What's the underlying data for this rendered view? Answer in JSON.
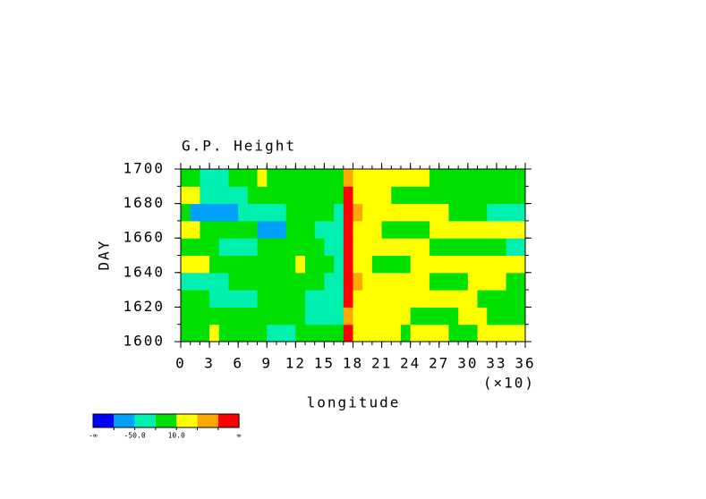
{
  "chart_data": {
    "type": "contour",
    "title": "G.P. Height",
    "xlabel": "longitude",
    "ylabel": "DAY",
    "x_scale_label": "(×10)",
    "xlim": [
      0,
      360
    ],
    "ylim": [
      1600,
      1700
    ],
    "xticks": [
      {
        "value": 0,
        "label": "0"
      },
      {
        "value": 30,
        "label": "3"
      },
      {
        "value": 60,
        "label": "6"
      },
      {
        "value": 90,
        "label": "9"
      },
      {
        "value": 120,
        "label": "12"
      },
      {
        "value": 150,
        "label": "15"
      },
      {
        "value": 180,
        "label": "18"
      },
      {
        "value": 210,
        "label": "21"
      },
      {
        "value": 240,
        "label": "24"
      },
      {
        "value": 270,
        "label": "27"
      },
      {
        "value": 300,
        "label": "30"
      },
      {
        "value": 330,
        "label": "33"
      },
      {
        "value": 360,
        "label": "36"
      }
    ],
    "yticks": [
      1600,
      1620,
      1640,
      1660,
      1680,
      1700
    ],
    "x_edges": [
      0,
      10,
      20,
      30,
      40,
      50,
      60,
      70,
      80,
      90,
      100,
      110,
      120,
      130,
      140,
      150,
      160,
      170,
      180,
      190,
      200,
      210,
      220,
      230,
      240,
      250,
      260,
      270,
      280,
      290,
      300,
      310,
      320,
      330,
      340,
      350,
      360
    ],
    "y_edges": [
      1600,
      1610,
      1620,
      1630,
      1640,
      1650,
      1660,
      1670,
      1680,
      1690,
      1700
    ],
    "z": [
      [
        -5,
        -5,
        -5,
        25,
        -5,
        -5,
        -5,
        -5,
        -5,
        -35,
        -35,
        -35,
        -5,
        -5,
        -5,
        -5,
        -5,
        85,
        25,
        25,
        25,
        25,
        25,
        -5,
        25,
        25,
        25,
        25,
        -5,
        -5,
        -5,
        25,
        25,
        25,
        25,
        25
      ],
      [
        -5,
        -5,
        -5,
        -5,
        -5,
        -5,
        -5,
        -5,
        -5,
        -5,
        -5,
        -5,
        -5,
        -35,
        -35,
        -35,
        -35,
        55,
        25,
        25,
        25,
        25,
        25,
        25,
        -5,
        -5,
        -5,
        -5,
        -5,
        25,
        25,
        25,
        -5,
        -5,
        -5,
        -5
      ],
      [
        -5,
        -5,
        -5,
        -35,
        -35,
        -35,
        -35,
        -35,
        -5,
        -5,
        -5,
        -5,
        -5,
        -35,
        -35,
        -35,
        -35,
        85,
        25,
        25,
        25,
        25,
        25,
        25,
        25,
        25,
        25,
        25,
        25,
        25,
        25,
        -5,
        -5,
        -5,
        -5,
        -5
      ],
      [
        -35,
        -35,
        -35,
        -35,
        -35,
        -5,
        -5,
        -5,
        -5,
        -5,
        -5,
        -5,
        -5,
        -5,
        -5,
        -35,
        -35,
        85,
        55,
        25,
        25,
        25,
        25,
        25,
        25,
        25,
        -5,
        -5,
        -5,
        -5,
        25,
        25,
        25,
        25,
        -5,
        -5
      ],
      [
        25,
        25,
        25,
        -5,
        -5,
        -5,
        -5,
        -5,
        -5,
        -5,
        -5,
        -5,
        25,
        -5,
        -5,
        -5,
        -35,
        85,
        25,
        25,
        -5,
        -5,
        -5,
        -5,
        25,
        25,
        25,
        25,
        25,
        25,
        25,
        25,
        25,
        25,
        25,
        25
      ],
      [
        -5,
        -5,
        -5,
        -5,
        -35,
        -35,
        -35,
        -35,
        -5,
        -5,
        -5,
        -5,
        -5,
        -5,
        -5,
        -35,
        -35,
        85,
        25,
        25,
        25,
        25,
        25,
        25,
        25,
        25,
        -5,
        -5,
        -5,
        -5,
        -5,
        -5,
        -5,
        -5,
        -35,
        -35
      ],
      [
        25,
        25,
        -5,
        -5,
        -5,
        -5,
        -5,
        -5,
        -65,
        -65,
        -65,
        -5,
        -5,
        -5,
        -35,
        -35,
        -35,
        85,
        25,
        25,
        25,
        -5,
        -5,
        -5,
        -5,
        -5,
        25,
        25,
        25,
        25,
        25,
        25,
        25,
        25,
        25,
        25
      ],
      [
        -5,
        -65,
        -65,
        -65,
        -65,
        -65,
        -35,
        -35,
        -35,
        -35,
        -35,
        -5,
        -5,
        -5,
        -5,
        -5,
        -35,
        85,
        55,
        25,
        25,
        25,
        25,
        25,
        25,
        25,
        25,
        25,
        -5,
        -5,
        -5,
        -5,
        -35,
        -35,
        -35,
        -35
      ],
      [
        25,
        25,
        -35,
        -35,
        -35,
        -35,
        -35,
        -5,
        -5,
        -5,
        -5,
        -5,
        -5,
        -5,
        -5,
        -5,
        -5,
        85,
        25,
        25,
        25,
        25,
        -5,
        -5,
        -5,
        -5,
        -5,
        -5,
        -5,
        -5,
        -5,
        -5,
        -5,
        -5,
        -5,
        -5
      ],
      [
        -5,
        -5,
        -35,
        -35,
        -35,
        -5,
        -5,
        -5,
        25,
        -5,
        -5,
        -5,
        -5,
        -5,
        -5,
        -5,
        -5,
        55,
        25,
        25,
        25,
        25,
        25,
        25,
        25,
        25,
        -5,
        -5,
        -5,
        -5,
        -5,
        -5,
        -5,
        -5,
        -5,
        -5
      ]
    ],
    "colorbar": {
      "levels": [
        -80,
        -50,
        -20,
        10,
        40,
        70
      ],
      "colors": [
        "#0000ff",
        "#00a0ff",
        "#00f0b0",
        "#00e000",
        "#ffff00",
        "#ffa800",
        "#ff0000"
      ],
      "ticks": [
        {
          "value": -50,
          "label": "-50.0"
        },
        {
          "value": 10,
          "label": "10.0"
        }
      ],
      "low_label": "-∞",
      "high_label": "∞"
    }
  }
}
